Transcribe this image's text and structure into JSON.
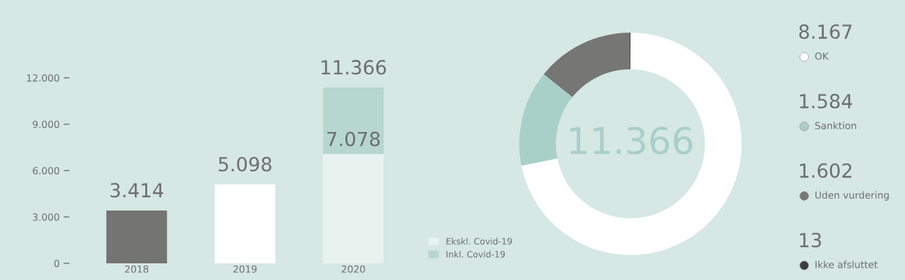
{
  "chart_data": [
    {
      "type": "bar",
      "categories": [
        "2018",
        "2019",
        "2020"
      ],
      "stacked": true,
      "series": [
        {
          "colors": [
            "#747472",
            "#ffffff",
            "#ffffff"
          ],
          "values": [
            3414,
            5098,
            null
          ]
        },
        {
          "name": "Ekskl. Covid-19",
          "color": "#e8f2ef",
          "values": [
            null,
            null,
            7078
          ],
          "value_labels": [
            null,
            null,
            "7.078"
          ]
        },
        {
          "name": "Inkl. Covid-19",
          "color": "#b5d7cf",
          "values": [
            null,
            null,
            4288
          ]
        }
      ],
      "totals": [
        "3.414",
        "5.098",
        "11.366"
      ],
      "ylim": [
        0,
        12000
      ],
      "yticks": [
        {
          "value": 0,
          "label": "0"
        },
        {
          "value": 3000,
          "label": "3.000"
        },
        {
          "value": 6000,
          "label": "6.000"
        },
        {
          "value": 9000,
          "label": "9.000"
        },
        {
          "value": 12000,
          "label": "12.000"
        }
      ],
      "legend": "bottom right",
      "grid": false
    },
    {
      "type": "donut",
      "categories": [
        "OK",
        "Sanktion",
        "Uden vurdering",
        "Ikke afsluttet"
      ],
      "values": [
        8167,
        1584,
        1602,
        13
      ],
      "value_labels": [
        "8.167",
        "1.584",
        "1.602",
        "13"
      ],
      "colors": [
        "#ffffff",
        "#a8d0c8",
        "#767674",
        "#3c3c3c"
      ],
      "annotations": [
        "11.366"
      ],
      "legend": "right"
    }
  ]
}
